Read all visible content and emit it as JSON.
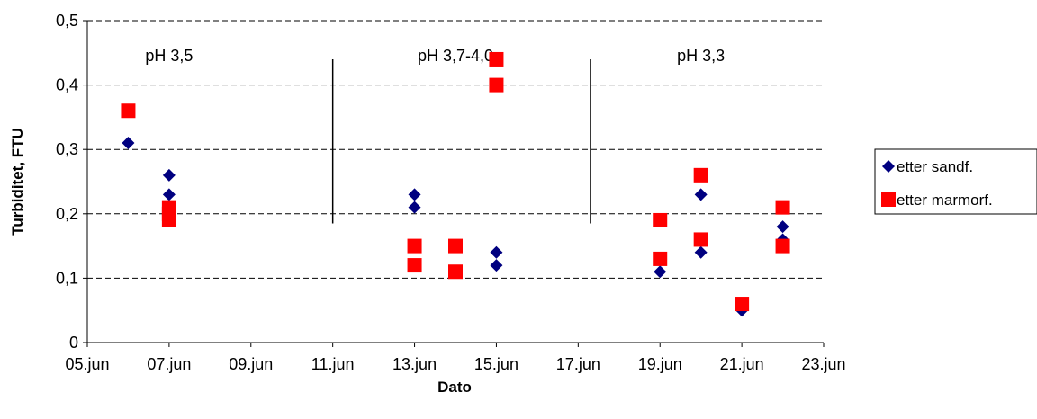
{
  "chart_data": {
    "type": "scatter",
    "title": "",
    "xlabel": "Dato",
    "ylabel": "Turbiditet, FTU",
    "ylim": [
      0,
      0.5
    ],
    "xlim": [
      "2000-06-05",
      "2000-06-23"
    ],
    "grid": "horizontal dashed",
    "legend_position": "right",
    "y_ticks": [
      "0",
      "0,1",
      "0,2",
      "0,3",
      "0,4",
      "0,5"
    ],
    "x_ticks": [
      "05.jun",
      "07.jun",
      "09.jun",
      "11.jun",
      "13.jun",
      "15.jun",
      "17.jun",
      "19.jun",
      "21.jun",
      "23.jun"
    ],
    "series": [
      {
        "name": "etter sandf.",
        "marker": "diamond",
        "color": "#000080",
        "points": [
          {
            "x": "2000-06-06",
            "y": 0.31
          },
          {
            "x": "2000-06-07",
            "y": 0.26
          },
          {
            "x": "2000-06-07",
            "y": 0.23
          },
          {
            "x": "2000-06-13",
            "y": 0.23
          },
          {
            "x": "2000-06-13",
            "y": 0.21
          },
          {
            "x": "2000-06-15",
            "y": 0.14
          },
          {
            "x": "2000-06-15",
            "y": 0.12
          },
          {
            "x": "2000-06-19",
            "y": 0.11
          },
          {
            "x": "2000-06-20",
            "y": 0.23
          },
          {
            "x": "2000-06-20",
            "y": 0.14
          },
          {
            "x": "2000-06-21",
            "y": 0.05
          },
          {
            "x": "2000-06-22",
            "y": 0.18
          },
          {
            "x": "2000-06-22",
            "y": 0.16
          }
        ]
      },
      {
        "name": "etter marmorf.",
        "marker": "square",
        "color": "#ff0000",
        "points": [
          {
            "x": "2000-06-06",
            "y": 0.36
          },
          {
            "x": "2000-06-07",
            "y": 0.21
          },
          {
            "x": "2000-06-07",
            "y": 0.2
          },
          {
            "x": "2000-06-07",
            "y": 0.19
          },
          {
            "x": "2000-06-13",
            "y": 0.15
          },
          {
            "x": "2000-06-13",
            "y": 0.12
          },
          {
            "x": "2000-06-14",
            "y": 0.15
          },
          {
            "x": "2000-06-14",
            "y": 0.11
          },
          {
            "x": "2000-06-15",
            "y": 0.44
          },
          {
            "x": "2000-06-15",
            "y": 0.4
          },
          {
            "x": "2000-06-19",
            "y": 0.19
          },
          {
            "x": "2000-06-19",
            "y": 0.13
          },
          {
            "x": "2000-06-20",
            "y": 0.26
          },
          {
            "x": "2000-06-20",
            "y": 0.16
          },
          {
            "x": "2000-06-21",
            "y": 0.06
          },
          {
            "x": "2000-06-22",
            "y": 0.21
          },
          {
            "x": "2000-06-22",
            "y": 0.15
          }
        ]
      }
    ],
    "annotations": [
      {
        "text": "pH 3,5",
        "x": "2000-06-07"
      },
      {
        "text": "pH 3,7-4,0",
        "x": "2000-06-14"
      },
      {
        "text": "pH 3,3",
        "x": "2000-06-20"
      }
    ],
    "dividers": [
      {
        "x": "2000-06-11",
        "y_from": 0.185,
        "y_to": 0.44
      },
      {
        "x": "2000-06-17.3",
        "y_from": 0.185,
        "y_to": 0.44
      }
    ]
  }
}
